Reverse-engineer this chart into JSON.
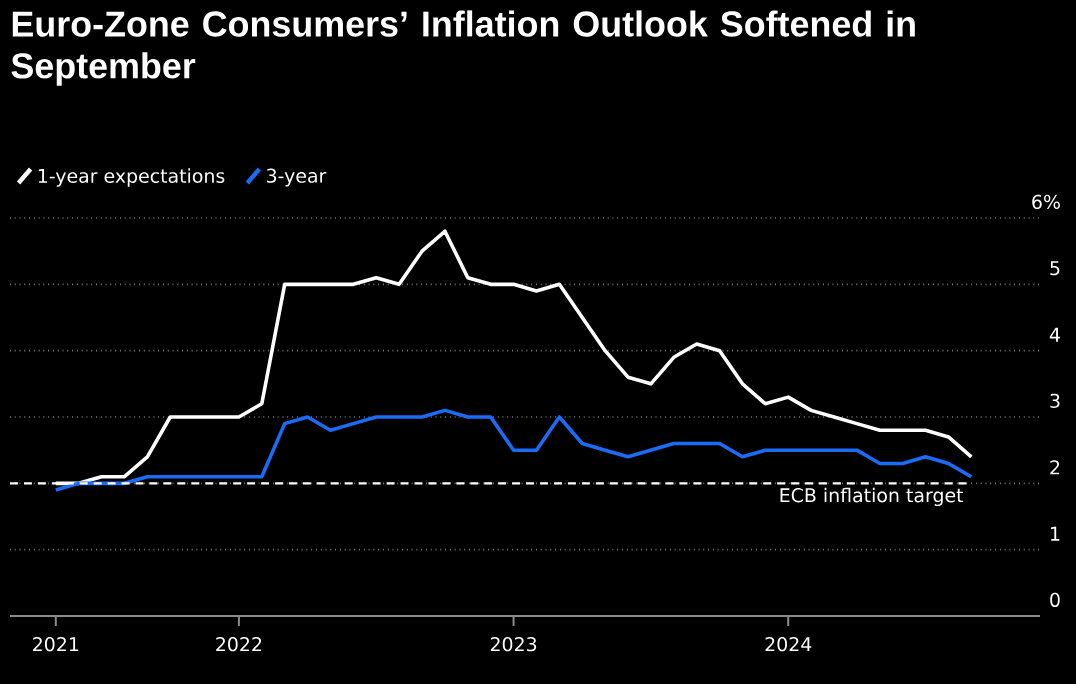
{
  "chart_data": {
    "type": "line",
    "title": "Euro-Zone Consumers’ Inflation Outlook Softened in September",
    "x": [
      "2021-05",
      "2021-06",
      "2021-07",
      "2021-08",
      "2021-09",
      "2021-10",
      "2021-11",
      "2021-12",
      "2022-01",
      "2022-02",
      "2022-03",
      "2022-04",
      "2022-05",
      "2022-06",
      "2022-07",
      "2022-08",
      "2022-09",
      "2022-10",
      "2022-11",
      "2022-12",
      "2023-01",
      "2023-02",
      "2023-03",
      "2023-04",
      "2023-05",
      "2023-06",
      "2023-07",
      "2023-08",
      "2023-09",
      "2023-10",
      "2023-11",
      "2023-12",
      "2024-01",
      "2024-02",
      "2024-03",
      "2024-04",
      "2024-05",
      "2024-06",
      "2024-07",
      "2024-08",
      "2024-09"
    ],
    "series": [
      {
        "name": "1-year expectations",
        "color": "#ffffff",
        "values": [
          2.0,
          2.0,
          2.1,
          2.1,
          2.4,
          3.0,
          3.0,
          3.0,
          3.0,
          3.2,
          5.0,
          5.0,
          5.0,
          5.0,
          5.1,
          5.0,
          5.5,
          5.8,
          5.1,
          5.0,
          5.0,
          4.9,
          5.0,
          4.5,
          4.0,
          3.6,
          3.5,
          3.9,
          4.1,
          4.0,
          3.5,
          3.2,
          3.3,
          3.1,
          3.0,
          2.9,
          2.8,
          2.8,
          2.8,
          2.7,
          2.4
        ]
      },
      {
        "name": "3-year",
        "color": "#1a6cf5",
        "values": [
          1.9,
          2.0,
          2.0,
          2.0,
          2.1,
          2.1,
          2.1,
          2.1,
          2.1,
          2.1,
          2.9,
          3.0,
          2.8,
          2.9,
          3.0,
          3.0,
          3.0,
          3.1,
          3.0,
          3.0,
          2.5,
          2.5,
          3.0,
          2.6,
          2.5,
          2.4,
          2.5,
          2.6,
          2.6,
          2.6,
          2.4,
          2.5,
          2.5,
          2.5,
          2.5,
          2.5,
          2.3,
          2.3,
          2.4,
          2.3,
          2.1
        ]
      }
    ],
    "xlim": [
      "2021-03",
      "2024-12"
    ],
    "xticks": [
      {
        "value": "2021-05",
        "label": "2021"
      },
      {
        "value": "2022-01",
        "label": "2022"
      },
      {
        "value": "2023-01",
        "label": "2023"
      },
      {
        "value": "2024-01",
        "label": "2024"
      }
    ],
    "ylim": [
      0,
      6
    ],
    "yticks": [
      0,
      1,
      2,
      3,
      4,
      5,
      {
        "value": 6,
        "label": "6%"
      }
    ],
    "ref_lines": [
      {
        "axis": "y",
        "value": 2,
        "label": "ECB inflation target",
        "color": "#ffffff",
        "line_style": "dashed"
      }
    ],
    "grid": "y",
    "legend": "top left",
    "line_style": "solid"
  }
}
